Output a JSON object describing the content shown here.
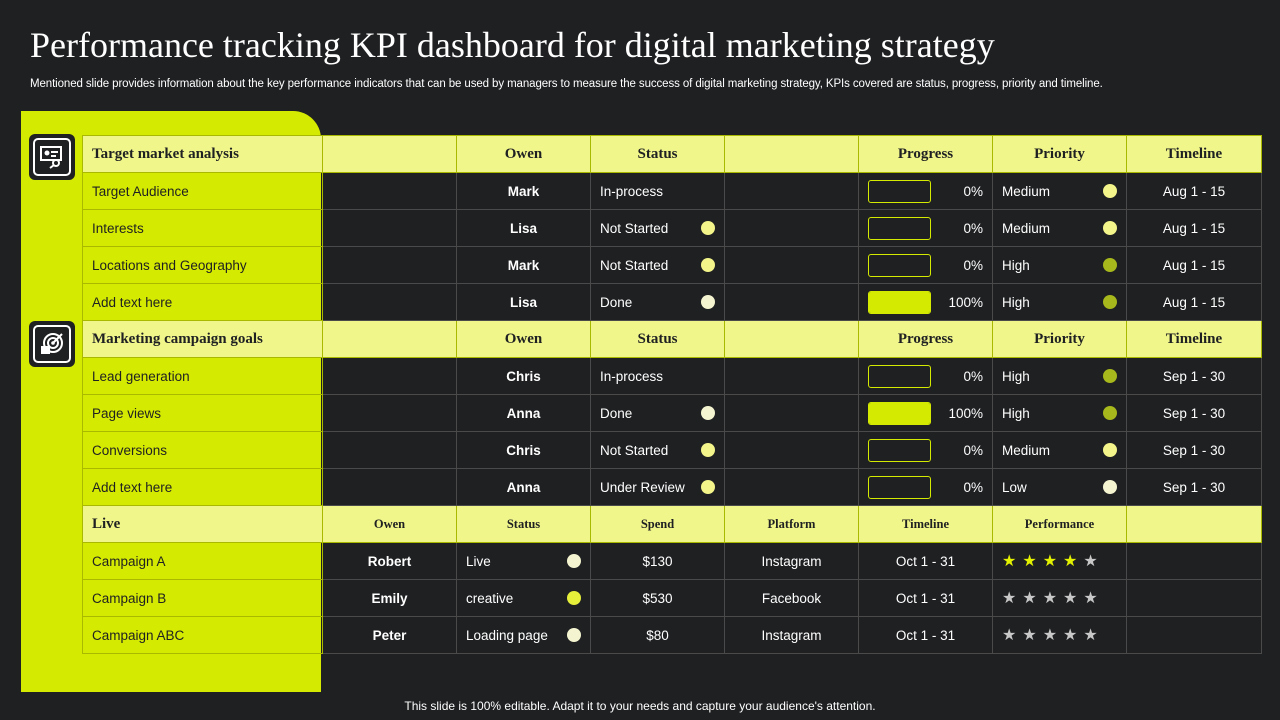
{
  "title": "Performance tracking KPI dashboard for digital marketing strategy",
  "subtitle": "Mentioned slide provides information about the key performance indicators that can be used by managers to measure the success of digital marketing strategy, KPIs covered are status, progress, priority and timeline.",
  "colors": {
    "accent": "#d4ea00",
    "header_bg": "#f0f68a",
    "background": "#1f2022"
  },
  "section1": {
    "headers": [
      "Target market analysis",
      "",
      "Owen",
      "Status",
      "",
      "Progress",
      "Priority",
      "Timeline"
    ],
    "rows": [
      {
        "name": "Target Audience",
        "owner": "Mark",
        "status": "In-process",
        "status_dot": "",
        "progress": 0,
        "progress_label": "0%",
        "priority": "Medium",
        "priority_dot": "pale",
        "timeline": "Aug 1 - 15"
      },
      {
        "name": "Interests",
        "owner": "Lisa",
        "status": "Not Started",
        "status_dot": "pale",
        "progress": 0,
        "progress_label": "0%",
        "priority": "Medium",
        "priority_dot": "pale",
        "timeline": "Aug 1 - 15"
      },
      {
        "name": "Locations and Geography",
        "owner": "Mark",
        "status": "Not Started",
        "status_dot": "pale",
        "progress": 0,
        "progress_label": "0%",
        "priority": "High",
        "priority_dot": "olive",
        "timeline": "Aug 1 - 15"
      },
      {
        "name": "Add text here",
        "owner": "Lisa",
        "status": "Done",
        "status_dot": "white",
        "progress": 100,
        "progress_label": "100%",
        "priority": "High",
        "priority_dot": "olive",
        "timeline": "Aug 1 - 15"
      }
    ]
  },
  "section2": {
    "headers": [
      "Marketing campaign goals",
      "",
      "Owen",
      "Status",
      "",
      "Progress",
      "Priority",
      "Timeline"
    ],
    "rows": [
      {
        "name": "Lead generation",
        "owner": "Chris",
        "status": "In-process",
        "status_dot": "",
        "progress": 0,
        "progress_label": "0%",
        "priority": "High",
        "priority_dot": "olive",
        "timeline": "Sep 1 - 30"
      },
      {
        "name": "Page views",
        "owner": "Anna",
        "status": "Done",
        "status_dot": "white",
        "progress": 100,
        "progress_label": "100%",
        "priority": "High",
        "priority_dot": "olive",
        "timeline": "Sep 1 - 30"
      },
      {
        "name": "Conversions",
        "owner": "Chris",
        "status": "Not Started",
        "status_dot": "pale",
        "progress": 0,
        "progress_label": "0%",
        "priority": "Medium",
        "priority_dot": "pale",
        "timeline": "Sep 1 - 30"
      },
      {
        "name": "Add text here",
        "owner": "Anna",
        "status": "Under Review",
        "status_dot": "pale",
        "progress": 0,
        "progress_label": "0%",
        "priority": "Low",
        "priority_dot": "white",
        "timeline": "Sep 1 - 30"
      }
    ]
  },
  "section3": {
    "headers": [
      "Live",
      "Owen",
      "Status",
      "Spend",
      "Platform",
      "Timeline",
      "Performance",
      ""
    ],
    "rows": [
      {
        "name": "Campaign A",
        "owner": "Robert",
        "status": "Live",
        "status_dot": "white",
        "spend": "$130",
        "platform": "Instagram",
        "timeline": "Oct 1 - 31",
        "rating": 4,
        "rating_max": 5
      },
      {
        "name": "Campaign B",
        "owner": "Emily",
        "status": "creative",
        "status_dot": "bright",
        "spend": "$530",
        "platform": "Facebook",
        "timeline": "Oct 1 - 31",
        "rating": 0,
        "rating_max": 5
      },
      {
        "name": "Campaign ABC",
        "owner": "Peter",
        "status": "Loading page",
        "status_dot": "white",
        "spend": "$80",
        "platform": "Instagram",
        "timeline": "Oct 1 - 31",
        "rating": 0,
        "rating_max": 5
      }
    ]
  },
  "icons": [
    "presentation-icon",
    "target-icon",
    "star-icon"
  ],
  "footer": "This slide is 100% editable. Adapt it to your needs and capture your audience's attention."
}
